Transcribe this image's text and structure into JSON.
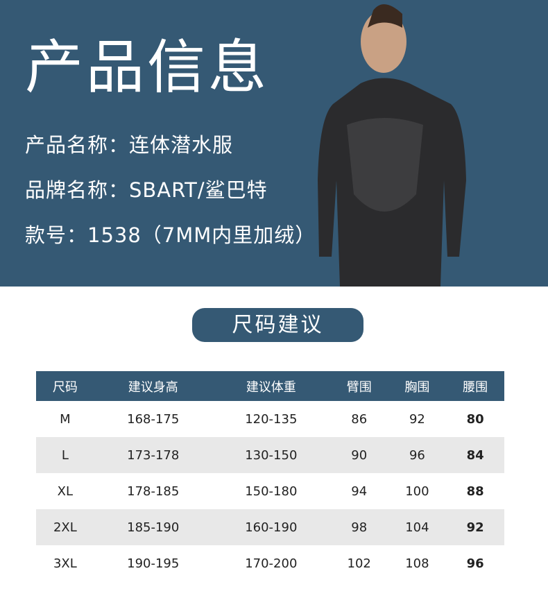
{
  "header": {
    "title": "产品信息",
    "name_line": "产品名称：连体潜水服",
    "brand_line": "品牌名称：SBART/鲨巴特",
    "model_line": "款号：1538（7MM内里加绒）"
  },
  "section": {
    "title": "尺码建议"
  },
  "colors": {
    "brand": "#355974",
    "row_alt": "#e8e8e8"
  },
  "table": {
    "headers": [
      "尺码",
      "建议身高",
      "建议体重",
      "臂围",
      "胸围",
      "腰围"
    ],
    "rows": [
      [
        "M",
        "168-175",
        "120-135",
        "86",
        "92",
        "80"
      ],
      [
        "L",
        "173-178",
        "130-150",
        "90",
        "96",
        "84"
      ],
      [
        "XL",
        "178-185",
        "150-180",
        "94",
        "100",
        "88"
      ],
      [
        "2XL",
        "185-190",
        "160-190",
        "98",
        "104",
        "92"
      ],
      [
        "3XL",
        "190-195",
        "170-200",
        "102",
        "108",
        "96"
      ]
    ]
  }
}
